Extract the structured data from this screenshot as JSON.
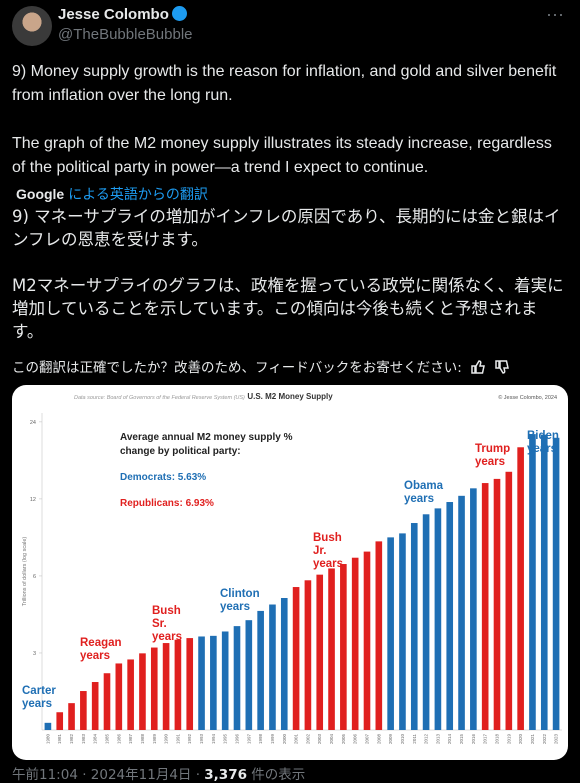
{
  "tweet": {
    "author": {
      "name": "Jesse Colombo",
      "handle": "@TheBubbleBubble"
    },
    "text": [
      "9) Money supply growth is the reason for inflation, and gold and silver benefit from inflation over the long run.",
      "The graph of the M2 money supply illustrates its steady increase, regardless of the political party in power—a trend I expect to continue."
    ],
    "translation": {
      "provider": "Google",
      "label": "による英語からの翻訳",
      "text": [
        "9) マネーサプライの増加がインフレの原因であり、長期的には金と銀はインフレの恩恵を受けます。",
        "M2マネーサプライのグラフは、政権を握っている政党に関係なく、着実に増加していることを示しています。この傾向は今後も続くと予想されます。"
      ],
      "feedback": "この翻訳は正確でしたか？改善のため、フィードバックをお寄せください:"
    },
    "meta": {
      "time": "午前11:04",
      "date": "2024年11月4日",
      "views": "3,376",
      "views_label": "件の表示"
    }
  },
  "chart_data": {
    "type": "bar",
    "title": "U.S. M2 Money Supply",
    "source": "Data source: Board of Governors of the Federal Reserve System (US)",
    "credit": "© Jesse Colombo, 2024",
    "y_label": "Trillions of dollars (log scale)",
    "log_scale": true,
    "categories": [
      "1980",
      "1981",
      "1982",
      "1983",
      "1984",
      "1985",
      "1986",
      "1987",
      "1988",
      "1989",
      "1990",
      "1991",
      "1992",
      "1993",
      "1994",
      "1995",
      "1996",
      "1997",
      "1998",
      "1999",
      "2000",
      "2001",
      "2002",
      "2003",
      "2004",
      "2005",
      "2006",
      "2007",
      "2008",
      "2009",
      "2010",
      "2011",
      "2012",
      "2013",
      "2014",
      "2015",
      "2016",
      "2017",
      "2018",
      "2019",
      "2020",
      "2021",
      "2022",
      "2023"
    ],
    "values": [
      1.6,
      1.76,
      1.91,
      2.13,
      2.31,
      2.5,
      2.73,
      2.83,
      2.99,
      3.15,
      3.28,
      3.38,
      3.43,
      3.48,
      3.5,
      3.64,
      3.82,
      4.03,
      4.38,
      4.64,
      4.92,
      5.43,
      5.77,
      6.07,
      6.42,
      6.68,
      7.07,
      7.47,
      8.19,
      8.49,
      8.8,
      9.66,
      10.45,
      11.02,
      11.67,
      12.34,
      13.2,
      13.84,
      14.37,
      15.32,
      19.1,
      21.5,
      21.4,
      20.8
    ],
    "colors": [
      "#1f6fb4",
      "#e0201f",
      "#e0201f",
      "#e0201f",
      "#e0201f",
      "#e0201f",
      "#e0201f",
      "#e0201f",
      "#e0201f",
      "#e0201f",
      "#e0201f",
      "#e0201f",
      "#e0201f",
      "#1f6fb4",
      "#1f6fb4",
      "#1f6fb4",
      "#1f6fb4",
      "#1f6fb4",
      "#1f6fb4",
      "#1f6fb4",
      "#1f6fb4",
      "#e0201f",
      "#e0201f",
      "#e0201f",
      "#e0201f",
      "#e0201f",
      "#e0201f",
      "#e0201f",
      "#e0201f",
      "#1f6fb4",
      "#1f6fb4",
      "#1f6fb4",
      "#1f6fb4",
      "#1f6fb4",
      "#1f6fb4",
      "#1f6fb4",
      "#1f6fb4",
      "#e0201f",
      "#e0201f",
      "#e0201f",
      "#e0201f",
      "#1f6fb4",
      "#1f6fb4",
      "#1f6fb4"
    ],
    "ylim": [
      1.5,
      26
    ],
    "yticks": [
      3,
      6,
      12,
      24
    ],
    "inset": {
      "heading": "Average annual M2 money supply % change by political party:",
      "democrats": "Democrats: 5.63%",
      "republicans": "Republicans: 6.93%"
    },
    "annotations": [
      {
        "text": "Carter years",
        "color": "#1f6fb4"
      },
      {
        "text": "Reagan years",
        "color": "#e0201f"
      },
      {
        "text": "Bush Sr. years",
        "color": "#e0201f"
      },
      {
        "text": "Clinton years",
        "color": "#1f6fb4"
      },
      {
        "text": "Bush Jr. years",
        "color": "#e0201f"
      },
      {
        "text": "Obama years",
        "color": "#1f6fb4"
      },
      {
        "text": "Trump years",
        "color": "#e0201f"
      },
      {
        "text": "Biden years",
        "color": "#1f6fb4"
      }
    ]
  }
}
